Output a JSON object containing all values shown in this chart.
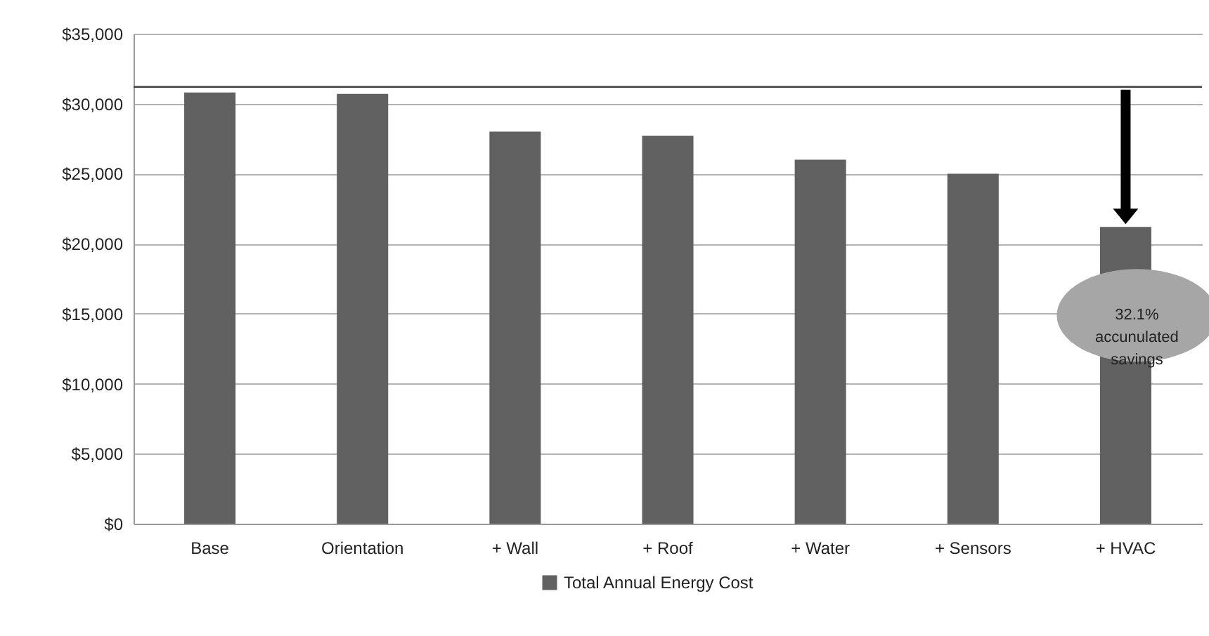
{
  "chart_data": {
    "type": "bar",
    "categories": [
      "Base",
      "Orientation",
      "+ Wall",
      "+ Roof",
      "+ Water",
      "+ Sensors",
      "+ HVAC"
    ],
    "series": [
      {
        "name": "Total Annual Energy Cost",
        "color": "#606060",
        "values": [
          30800,
          30700,
          28000,
          27700,
          26000,
          25000,
          21200
        ]
      }
    ],
    "ylim": [
      0,
      35000
    ],
    "yticks": [
      {
        "value": 0,
        "label": "$0"
      },
      {
        "value": 5000,
        "label": "$5,000"
      },
      {
        "value": 10000,
        "label": "$10,000"
      },
      {
        "value": 15000,
        "label": "$15,000"
      },
      {
        "value": 20000,
        "label": "$20,000"
      },
      {
        "value": 25000,
        "label": "$25,000"
      },
      {
        "value": 30000,
        "label": "$30,000"
      },
      {
        "value": 35000,
        "label": "$35,000"
      }
    ],
    "ref_lines": [
      {
        "axis": "y",
        "value": 31200,
        "color": "#404040"
      }
    ],
    "annotations": [
      "32.1%\naccunulated\nsavings"
    ],
    "grid": "y",
    "legend": "bottom"
  }
}
